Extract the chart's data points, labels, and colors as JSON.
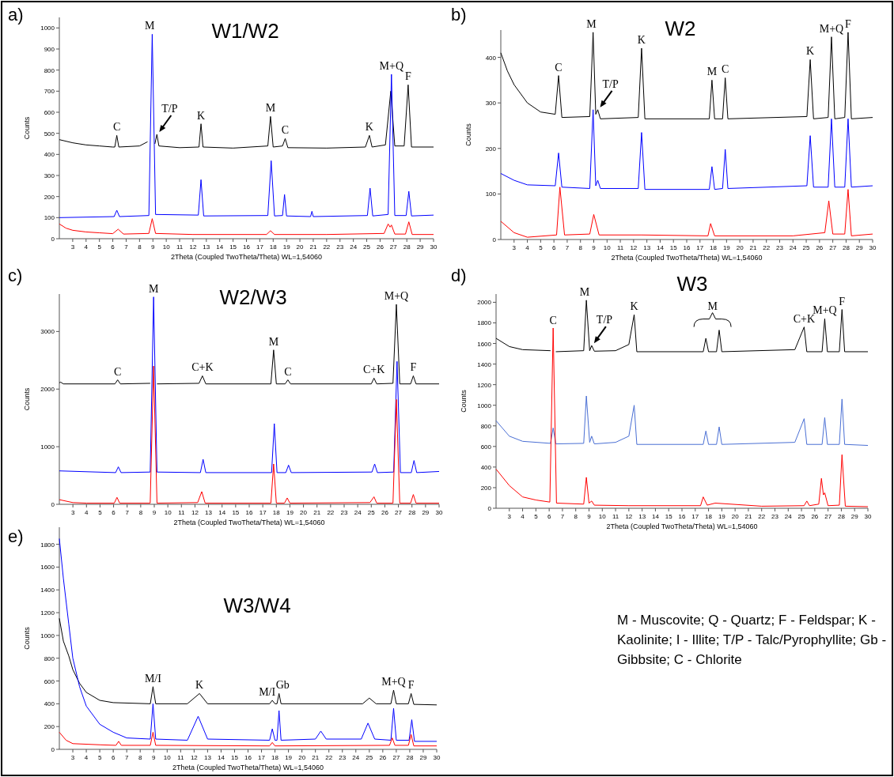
{
  "chart_data": [
    {
      "type": "line",
      "title": "W1/W2",
      "xlabel": "2Theta (Coupled TwoTheta/Theta) WL=1,54060",
      "ylabel": "Counts",
      "xlim": [
        2,
        30
      ],
      "xticks": [
        3,
        4,
        5,
        6,
        7,
        8,
        9,
        10,
        11,
        12,
        13,
        14,
        15,
        16,
        17,
        18,
        19,
        20,
        21,
        22,
        23,
        24,
        25,
        26,
        27,
        28,
        29,
        30
      ],
      "ylim": [
        0,
        1050
      ],
      "yticks": [
        0,
        100,
        200,
        300,
        400,
        500,
        600,
        700,
        800,
        900,
        1000
      ],
      "series": [
        {
          "color": "#000000",
          "x": [
            2,
            3,
            4,
            5,
            6,
            6.15,
            6.3,
            6.45,
            8,
            8.6,
            8.9,
            9.15,
            9.3,
            9.45,
            11,
            12.45,
            12.6,
            12.75,
            15,
            17.6,
            17.8,
            18,
            18.7,
            18.9,
            19.1,
            22,
            24.9,
            25.2,
            25.4,
            26.4,
            26.8,
            27.1,
            27.8,
            28.1,
            28.35,
            30
          ],
          "values": [
            470,
            455,
            445,
            440,
            435,
            435,
            490,
            435,
            440,
            460,
            null,
            450,
            495,
            440,
            432,
            435,
            545,
            435,
            430,
            440,
            580,
            435,
            440,
            475,
            432,
            430,
            435,
            490,
            435,
            445,
            700,
            440,
            440,
            730,
            435,
            435
          ]
        },
        {
          "color": "#0000ff",
          "x": [
            2,
            6.1,
            6.3,
            6.5,
            8.7,
            8.95,
            9.2,
            12.4,
            12.6,
            12.8,
            17.6,
            17.85,
            18.1,
            18.7,
            18.85,
            19,
            20.8,
            20.9,
            21,
            25.05,
            25.25,
            25.45,
            26.6,
            26.85,
            27.1,
            27.95,
            28.15,
            28.35,
            30
          ],
          "values": [
            100,
            105,
            135,
            105,
            110,
            970,
            115,
            112,
            280,
            108,
            110,
            370,
            108,
            110,
            210,
            108,
            105,
            130,
            105,
            110,
            240,
            108,
            115,
            780,
            110,
            110,
            225,
            108,
            112
          ]
        },
        {
          "color": "#ff0000",
          "x": [
            2,
            2.5,
            3,
            4,
            5,
            6,
            6.4,
            6.8,
            8.7,
            8.95,
            9.2,
            12,
            17.5,
            17.8,
            18.1,
            22,
            26.3,
            26.6,
            26.75,
            26.85,
            27.1,
            27.9,
            28.15,
            28.4,
            30
          ],
          "values": [
            70,
            50,
            40,
            32,
            28,
            24,
            45,
            22,
            25,
            95,
            25,
            20,
            20,
            38,
            20,
            20,
            25,
            70,
            55,
            65,
            22,
            22,
            80,
            20,
            20
          ]
        }
      ],
      "annotations": [
        "a)",
        {
          "text": "C",
          "x": 6.3,
          "y": 490
        },
        {
          "text": "M",
          "x": 8.9,
          "y": 970
        },
        {
          "text": "T/P",
          "x": 9.3,
          "y": 495
        },
        {
          "text": "K",
          "x": 12.6,
          "y": 545
        },
        {
          "text": "M",
          "x": 17.8,
          "y": 580
        },
        {
          "text": "C",
          "x": 18.9,
          "y": 475
        },
        {
          "text": "K",
          "x": 25.2,
          "y": 490
        },
        {
          "text": "M+Q",
          "x": 26.85,
          "y": 780
        },
        {
          "text": "F",
          "x": 28.1,
          "y": 730
        }
      ]
    },
    {
      "type": "line",
      "title": "W2",
      "xlabel": "2Theta (Coupled TwoTheta/Theta) WL=1,54060",
      "ylabel": "Counts",
      "xlim": [
        2,
        30
      ],
      "xticks": [
        3,
        4,
        5,
        6,
        7,
        8,
        9,
        10,
        11,
        12,
        13,
        14,
        15,
        16,
        17,
        18,
        19,
        20,
        21,
        22,
        23,
        24,
        25,
        26,
        27,
        28,
        29,
        30
      ],
      "ylim": [
        0,
        460
      ],
      "yticks": [
        0,
        100,
        200,
        300,
        400
      ],
      "series": [
        {
          "color": "#000000",
          "x": [
            2,
            2.5,
            3,
            4,
            5,
            6.1,
            6.35,
            6.6,
            8.7,
            8.95,
            9.15,
            9.3,
            9.5,
            12.35,
            12.6,
            12.85,
            17.7,
            17.9,
            18.1,
            18.7,
            18.9,
            19.1,
            25.05,
            25.3,
            25.55,
            26.65,
            26.9,
            27.15,
            27.9,
            28.15,
            28.4,
            30
          ],
          "values": [
            410,
            370,
            340,
            300,
            280,
            275,
            360,
            268,
            270,
            455,
            275,
            285,
            265,
            268,
            420,
            265,
            265,
            350,
            265,
            265,
            355,
            265,
            270,
            395,
            265,
            268,
            445,
            265,
            268,
            455,
            265,
            268
          ]
        },
        {
          "color": "#0000ff",
          "x": [
            2,
            3,
            4,
            6.1,
            6.35,
            6.6,
            8.7,
            8.95,
            9.15,
            9.3,
            9.5,
            12.35,
            12.6,
            12.85,
            17.7,
            17.9,
            18.1,
            18.7,
            18.9,
            19.1,
            25.05,
            25.3,
            25.55,
            26.65,
            26.9,
            27.15,
            27.9,
            28.15,
            28.4,
            30
          ],
          "values": [
            145,
            130,
            120,
            118,
            190,
            115,
            112,
            285,
            118,
            130,
            112,
            112,
            235,
            110,
            110,
            160,
            110,
            112,
            198,
            112,
            118,
            228,
            115,
            115,
            265,
            115,
            115,
            265,
            115,
            118
          ]
        },
        {
          "color": "#ff0000",
          "x": [
            2,
            3,
            4,
            6.2,
            6.45,
            6.8,
            8.7,
            9,
            9.4,
            12.6,
            17.6,
            17.8,
            18.1,
            24,
            26.4,
            26.7,
            27,
            27.9,
            28.15,
            28.4,
            30
          ],
          "values": [
            40,
            15,
            5,
            10,
            115,
            10,
            12,
            55,
            10,
            10,
            8,
            35,
            8,
            8,
            15,
            85,
            12,
            12,
            110,
            8,
            12
          ]
        }
      ],
      "annotations": [
        "b)",
        {
          "text": "C",
          "x": 6.35,
          "y": 360
        },
        {
          "text": "M",
          "x": 8.95,
          "y": 455
        },
        {
          "text": "T/P",
          "x": 9.3,
          "y": 285
        },
        {
          "text": "K",
          "x": 12.6,
          "y": 420
        },
        {
          "text": "M",
          "x": 17.9,
          "y": 350
        },
        {
          "text": "C",
          "x": 18.9,
          "y": 355
        },
        {
          "text": "K",
          "x": 25.3,
          "y": 395
        },
        {
          "text": "M+Q",
          "x": 26.9,
          "y": 445
        },
        {
          "text": "F",
          "x": 28.15,
          "y": 455
        }
      ]
    },
    {
      "type": "line",
      "title": "W2/W3",
      "xlabel": "2Theta (Coupled TwoTheta/Theta) WL=1,54060",
      "ylabel": "Counts",
      "xlim": [
        2,
        30
      ],
      "xticks": [
        3,
        4,
        5,
        6,
        7,
        8,
        9,
        10,
        11,
        12,
        13,
        14,
        15,
        16,
        17,
        18,
        19,
        20,
        21,
        22,
        23,
        24,
        25,
        26,
        27,
        28,
        29,
        30
      ],
      "ylim": [
        0,
        3650
      ],
      "yticks": [
        0,
        1000,
        2000,
        3000
      ],
      "series": [
        {
          "color": "#000000",
          "x": [
            2,
            2.1,
            2.3,
            6.1,
            6.3,
            6.5,
            8.7,
            8.95,
            9.2,
            12.3,
            12.55,
            12.8,
            17.6,
            17.8,
            18,
            18.65,
            18.85,
            19.05,
            25,
            25.2,
            25.4,
            26.6,
            26.85,
            27.1,
            27.9,
            28.1,
            28.3,
            30
          ],
          "values": [
            2110,
            2120,
            2090,
            2090,
            2160,
            2090,
            2100,
            null,
            2090,
            2100,
            2230,
            2090,
            2090,
            2680,
            2090,
            2090,
            2160,
            2090,
            2090,
            2190,
            2090,
            2100,
            3470,
            2090,
            2090,
            2230,
            2090,
            2090
          ]
        },
        {
          "color": "#0000ff",
          "x": [
            2,
            6.15,
            6.35,
            6.55,
            8.7,
            8.95,
            9.2,
            12.4,
            12.6,
            12.8,
            17.65,
            17.85,
            18.05,
            18.7,
            18.9,
            19.1,
            25.05,
            25.25,
            25.45,
            26.65,
            26.9,
            27.15,
            27.95,
            28.15,
            28.35,
            30
          ],
          "values": [
            580,
            550,
            650,
            550,
            560,
            3600,
            560,
            550,
            780,
            550,
            550,
            1400,
            550,
            550,
            680,
            550,
            560,
            700,
            550,
            560,
            2480,
            550,
            550,
            760,
            550,
            570
          ]
        },
        {
          "color": "#ff0000",
          "x": [
            2,
            3,
            4,
            6.05,
            6.25,
            6.45,
            8.7,
            8.95,
            9.2,
            12.2,
            12.5,
            12.75,
            17.6,
            17.8,
            18,
            18.6,
            18.8,
            19,
            24.9,
            25.2,
            25.4,
            26.6,
            26.85,
            27.1,
            27.9,
            28.1,
            28.3,
            30
          ],
          "values": [
            80,
            30,
            20,
            20,
            120,
            20,
            20,
            2400,
            20,
            30,
            220,
            20,
            20,
            700,
            20,
            20,
            110,
            20,
            30,
            130,
            20,
            20,
            1820,
            20,
            20,
            170,
            20,
            20
          ]
        }
      ],
      "annotations": [
        "c)",
        {
          "text": "C",
          "x": 6.3,
          "y": 2160
        },
        {
          "text": "M",
          "x": 8.95,
          "y": 3600
        },
        {
          "text": "C+K",
          "x": 12.55,
          "y": 2230
        },
        {
          "text": "M",
          "x": 17.8,
          "y": 2680
        },
        {
          "text": "C",
          "x": 18.85,
          "y": 2160
        },
        {
          "text": "C+K",
          "x": 25.2,
          "y": 2190
        },
        {
          "text": "M+Q",
          "x": 26.85,
          "y": 3470
        },
        {
          "text": "F",
          "x": 28.1,
          "y": 2230
        }
      ]
    },
    {
      "type": "line",
      "title": "W3",
      "xlabel": "2Theta (Coupled TwoTheta/Theta) WL=1,54060",
      "ylabel": "Counts",
      "xlim": [
        2,
        30
      ],
      "xticks": [
        3,
        4,
        5,
        6,
        7,
        8,
        9,
        10,
        11,
        12,
        13,
        14,
        15,
        16,
        17,
        18,
        19,
        20,
        21,
        22,
        23,
        24,
        25,
        26,
        27,
        28,
        29,
        30
      ],
      "ylim": [
        0,
        2080
      ],
      "yticks": [
        0,
        200,
        400,
        600,
        800,
        1000,
        1200,
        1400,
        1600,
        1800,
        2000
      ],
      "series": [
        {
          "color": "#000000",
          "x": [
            2,
            3,
            4,
            6.1,
            6.3,
            6.5,
            8.6,
            8.8,
            9.05,
            9.2,
            9.4,
            11,
            12,
            12.4,
            12.6,
            17.6,
            17.8,
            18,
            18.6,
            18.8,
            19,
            24.5,
            25.2,
            25.4,
            26.55,
            26.75,
            26.95,
            27.85,
            28.05,
            28.25,
            30
          ],
          "values": [
            1650,
            1570,
            1540,
            1530,
            null,
            1520,
            1530,
            2020,
            1530,
            1580,
            1525,
            1530,
            1590,
            1880,
            1520,
            1520,
            1650,
            1520,
            1520,
            1730,
            1520,
            1540,
            1760,
            1520,
            1520,
            1840,
            1520,
            1520,
            1930,
            1520,
            1520
          ]
        },
        {
          "color": "#4a6fd4",
          "x": [
            2,
            3,
            4,
            6.1,
            6.3,
            6.5,
            8.6,
            8.8,
            9.05,
            9.2,
            9.4,
            11,
            12,
            12.4,
            12.6,
            17.6,
            17.8,
            18,
            18.6,
            18.8,
            19,
            24.5,
            25.2,
            25.4,
            26.55,
            26.75,
            26.95,
            27.85,
            28.05,
            28.25,
            30
          ],
          "values": [
            850,
            700,
            650,
            630,
            780,
            625,
            630,
            1090,
            640,
            700,
            625,
            640,
            700,
            1000,
            620,
            620,
            750,
            620,
            620,
            790,
            620,
            640,
            870,
            620,
            620,
            880,
            620,
            620,
            1060,
            620,
            610
          ]
        },
        {
          "color": "#ff0000",
          "x": [
            2,
            3,
            4,
            5,
            6.05,
            6.3,
            6.55,
            8.6,
            8.8,
            9,
            9.2,
            9.4,
            12,
            17.4,
            17.6,
            17.9,
            18.5,
            22,
            25.2,
            25.4,
            25.6,
            26.3,
            26.5,
            26.65,
            26.75,
            27,
            27.85,
            28.05,
            28.3,
            30
          ],
          "values": [
            380,
            220,
            110,
            80,
            60,
            1750,
            50,
            40,
            300,
            50,
            70,
            30,
            25,
            25,
            110,
            30,
            50,
            20,
            25,
            70,
            25,
            40,
            290,
            130,
            150,
            25,
            30,
            520,
            20,
            15
          ]
        }
      ],
      "annotations": [
        "d)",
        {
          "text": "C",
          "x": 6.3,
          "y": 1740
        },
        {
          "text": "M",
          "x": 8.8,
          "y": 2020
        },
        {
          "text": "T/P",
          "x": 9.2,
          "y": 1580
        },
        {
          "text": "K",
          "x": 12.4,
          "y": 1880
        },
        {
          "text": "M",
          "x": 18.8,
          "y": 1730
        },
        {
          "text": "C+K",
          "x": 25.2,
          "y": 1760
        },
        {
          "text": "M+Q",
          "x": 26.75,
          "y": 1840
        },
        {
          "text": "F",
          "x": 28.05,
          "y": 1930
        }
      ]
    },
    {
      "type": "line",
      "title": "W3/W4",
      "xlabel": "2Theta (Coupled TwoTheta/Theta) WL=1,54060",
      "ylabel": "Counts",
      "xlim": [
        2,
        30
      ],
      "xticks": [
        3,
        4,
        5,
        6,
        7,
        8,
        9,
        10,
        11,
        12,
        13,
        14,
        15,
        16,
        17,
        18,
        19,
        20,
        21,
        22,
        23,
        24,
        25,
        26,
        27,
        28,
        29,
        30
      ],
      "ylim": [
        0,
        1950
      ],
      "yticks": [
        0,
        200,
        400,
        600,
        800,
        1000,
        1200,
        1400,
        1600,
        1800
      ],
      "series": [
        {
          "color": "#000000",
          "x": [
            2,
            2.3,
            2.7,
            3,
            3.5,
            4,
            5,
            6,
            8.75,
            8.95,
            9.15,
            11.5,
            12.4,
            13,
            17.6,
            17.8,
            18,
            18.15,
            18.3,
            18.45,
            24.5,
            25,
            25.5,
            26.6,
            26.8,
            27,
            27.9,
            28.1,
            28.3,
            30
          ],
          "values": [
            1150,
            950,
            820,
            700,
            580,
            500,
            430,
            410,
            400,
            550,
            400,
            400,
            490,
            400,
            400,
            430,
            400,
            400,
            490,
            400,
            400,
            450,
            400,
            400,
            520,
            400,
            400,
            490,
            395,
            390
          ]
        },
        {
          "color": "#0000ff",
          "x": [
            2,
            2.3,
            2.7,
            3,
            3.5,
            4,
            5,
            6,
            7,
            8.75,
            8.95,
            9.15,
            11.5,
            12.3,
            13,
            17.6,
            17.8,
            18,
            18.15,
            18.3,
            18.45,
            21,
            21.4,
            21.8,
            24.4,
            24.9,
            25.4,
            26.6,
            26.8,
            27,
            27.95,
            28.15,
            28.35,
            30
          ],
          "values": [
            1850,
            1500,
            1100,
            800,
            550,
            380,
            220,
            150,
            100,
            90,
            400,
            90,
            80,
            290,
            90,
            80,
            180,
            80,
            80,
            340,
            80,
            90,
            160,
            90,
            90,
            230,
            90,
            80,
            360,
            80,
            80,
            260,
            70,
            70
          ]
        },
        {
          "color": "#ff0000",
          "x": [
            2,
            2.5,
            3,
            5,
            6.2,
            6.4,
            6.6,
            8.75,
            8.95,
            9.15,
            17.6,
            17.8,
            18,
            26.5,
            26.7,
            26.9,
            27.9,
            28.1,
            28.3,
            30
          ],
          "values": [
            150,
            80,
            50,
            40,
            35,
            70,
            35,
            35,
            150,
            35,
            30,
            60,
            30,
            35,
            100,
            35,
            35,
            130,
            30,
            30
          ]
        }
      ],
      "annotations": [
        "e)",
        {
          "text": "M/I",
          "x": 8.95,
          "y": 550
        },
        {
          "text": "K",
          "x": 12.4,
          "y": 490
        },
        {
          "text": "M/I",
          "x": 17.8,
          "y": 430
        },
        {
          "text": "Gb",
          "x": 18.3,
          "y": 490
        },
        {
          "text": "M+Q",
          "x": 26.8,
          "y": 520
        },
        {
          "text": "F",
          "x": 28.1,
          "y": 490
        }
      ]
    },
    {
      "type": "other",
      "annotations": [
        "M - Muscovite; Q - Quartz; F - Feldspar; K - Kaolinite; I - Illite; T/P - Talc/Pyrophyllite; Gb - Gibbsite; C - Chlorite"
      ]
    }
  ]
}
